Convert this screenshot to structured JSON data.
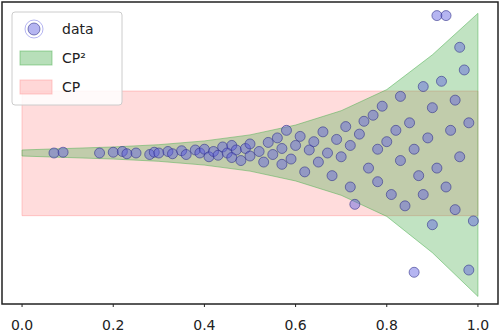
{
  "chart_data": {
    "type": "scatter",
    "xlim": [
      -0.044,
      1.044
    ],
    "ylim": [
      -2,
      2
    ],
    "xticks": [
      {
        "value": 0,
        "label": "0.0"
      },
      {
        "value": 0.2,
        "label": "0.2"
      },
      {
        "value": 0.4,
        "label": "0.4"
      },
      {
        "value": 0.6,
        "label": "0.6"
      },
      {
        "value": 0.8,
        "label": "0.8"
      },
      {
        "value": 1,
        "label": "1.0"
      }
    ],
    "tick_labels": "x",
    "grid": false,
    "legend": "upper left",
    "series": [
      {
        "name": "data",
        "type": "scatter",
        "marker": "circle",
        "color": "#5a5ae0",
        "x": [
          0.07,
          0.09,
          0.17,
          0.2,
          0.22,
          0.23,
          0.25,
          0.28,
          0.29,
          0.3,
          0.32,
          0.33,
          0.35,
          0.36,
          0.38,
          0.39,
          0.4,
          0.41,
          0.42,
          0.43,
          0.44,
          0.45,
          0.46,
          0.46,
          0.47,
          0.48,
          0.49,
          0.5,
          0.5,
          0.52,
          0.53,
          0.54,
          0.55,
          0.56,
          0.57,
          0.57,
          0.58,
          0.59,
          0.6,
          0.61,
          0.62,
          0.63,
          0.64,
          0.65,
          0.66,
          0.67,
          0.68,
          0.69,
          0.7,
          0.71,
          0.72,
          0.72,
          0.73,
          0.74,
          0.75,
          0.76,
          0.77,
          0.78,
          0.78,
          0.79,
          0.8,
          0.81,
          0.82,
          0.83,
          0.83,
          0.84,
          0.85,
          0.86,
          0.86,
          0.87,
          0.88,
          0.88,
          0.89,
          0.9,
          0.9,
          0.91,
          0.91,
          0.92,
          0.93,
          0.93,
          0.94,
          0.95,
          0.95,
          0.96,
          0.97,
          0.98,
          0.98,
          0.99,
          0.96
        ],
        "values": [
          0.0,
          0.01,
          0.0,
          0.01,
          0.02,
          -0.01,
          0.0,
          -0.02,
          0.01,
          0.0,
          0.02,
          -0.01,
          0.03,
          -0.02,
          0.04,
          0.0,
          0.05,
          -0.05,
          0.02,
          -0.03,
          0.08,
          0.0,
          0.1,
          -0.06,
          0.04,
          -0.1,
          0.06,
          0.12,
          -0.04,
          0.02,
          -0.12,
          0.14,
          -0.02,
          0.2,
          0.06,
          -0.15,
          0.3,
          -0.08,
          0.1,
          0.22,
          -0.25,
          0.04,
          0.15,
          -0.12,
          0.28,
          0.0,
          -0.3,
          0.18,
          -0.05,
          0.35,
          0.1,
          -0.45,
          -0.68,
          0.25,
          0.42,
          -0.2,
          0.5,
          0.05,
          -0.38,
          0.62,
          0.15,
          -0.55,
          0.3,
          -0.1,
          0.75,
          -0.7,
          0.4,
          -1.58,
          0.05,
          -0.3,
          0.88,
          -0.55,
          0.2,
          -0.95,
          0.6,
          1.82,
          -0.2,
          0.95,
          1.82,
          -0.45,
          0.3,
          -0.75,
          0.7,
          -0.05,
          1.1,
          -1.55,
          0.4,
          -0.9,
          1.4
        ]
      },
      {
        "name": "CP²",
        "type": "area",
        "color": "#4caf50",
        "x": [
          0,
          0.1,
          0.2,
          0.3,
          0.4,
          0.5,
          0.6,
          0.7,
          0.8,
          0.9,
          1.0
        ],
        "upper": [
          0.04,
          0.06,
          0.08,
          0.11,
          0.16,
          0.24,
          0.37,
          0.56,
          0.84,
          1.3,
          1.85
        ],
        "lower": [
          -0.04,
          -0.06,
          -0.08,
          -0.11,
          -0.16,
          -0.24,
          -0.37,
          -0.56,
          -0.84,
          -1.32,
          -1.9
        ]
      },
      {
        "name": "CP",
        "type": "area",
        "color": "#ff9a9a",
        "x": [
          0,
          1.0
        ],
        "upper": [
          0.82,
          0.82
        ],
        "lower": [
          -0.83,
          -0.83
        ]
      }
    ]
  }
}
